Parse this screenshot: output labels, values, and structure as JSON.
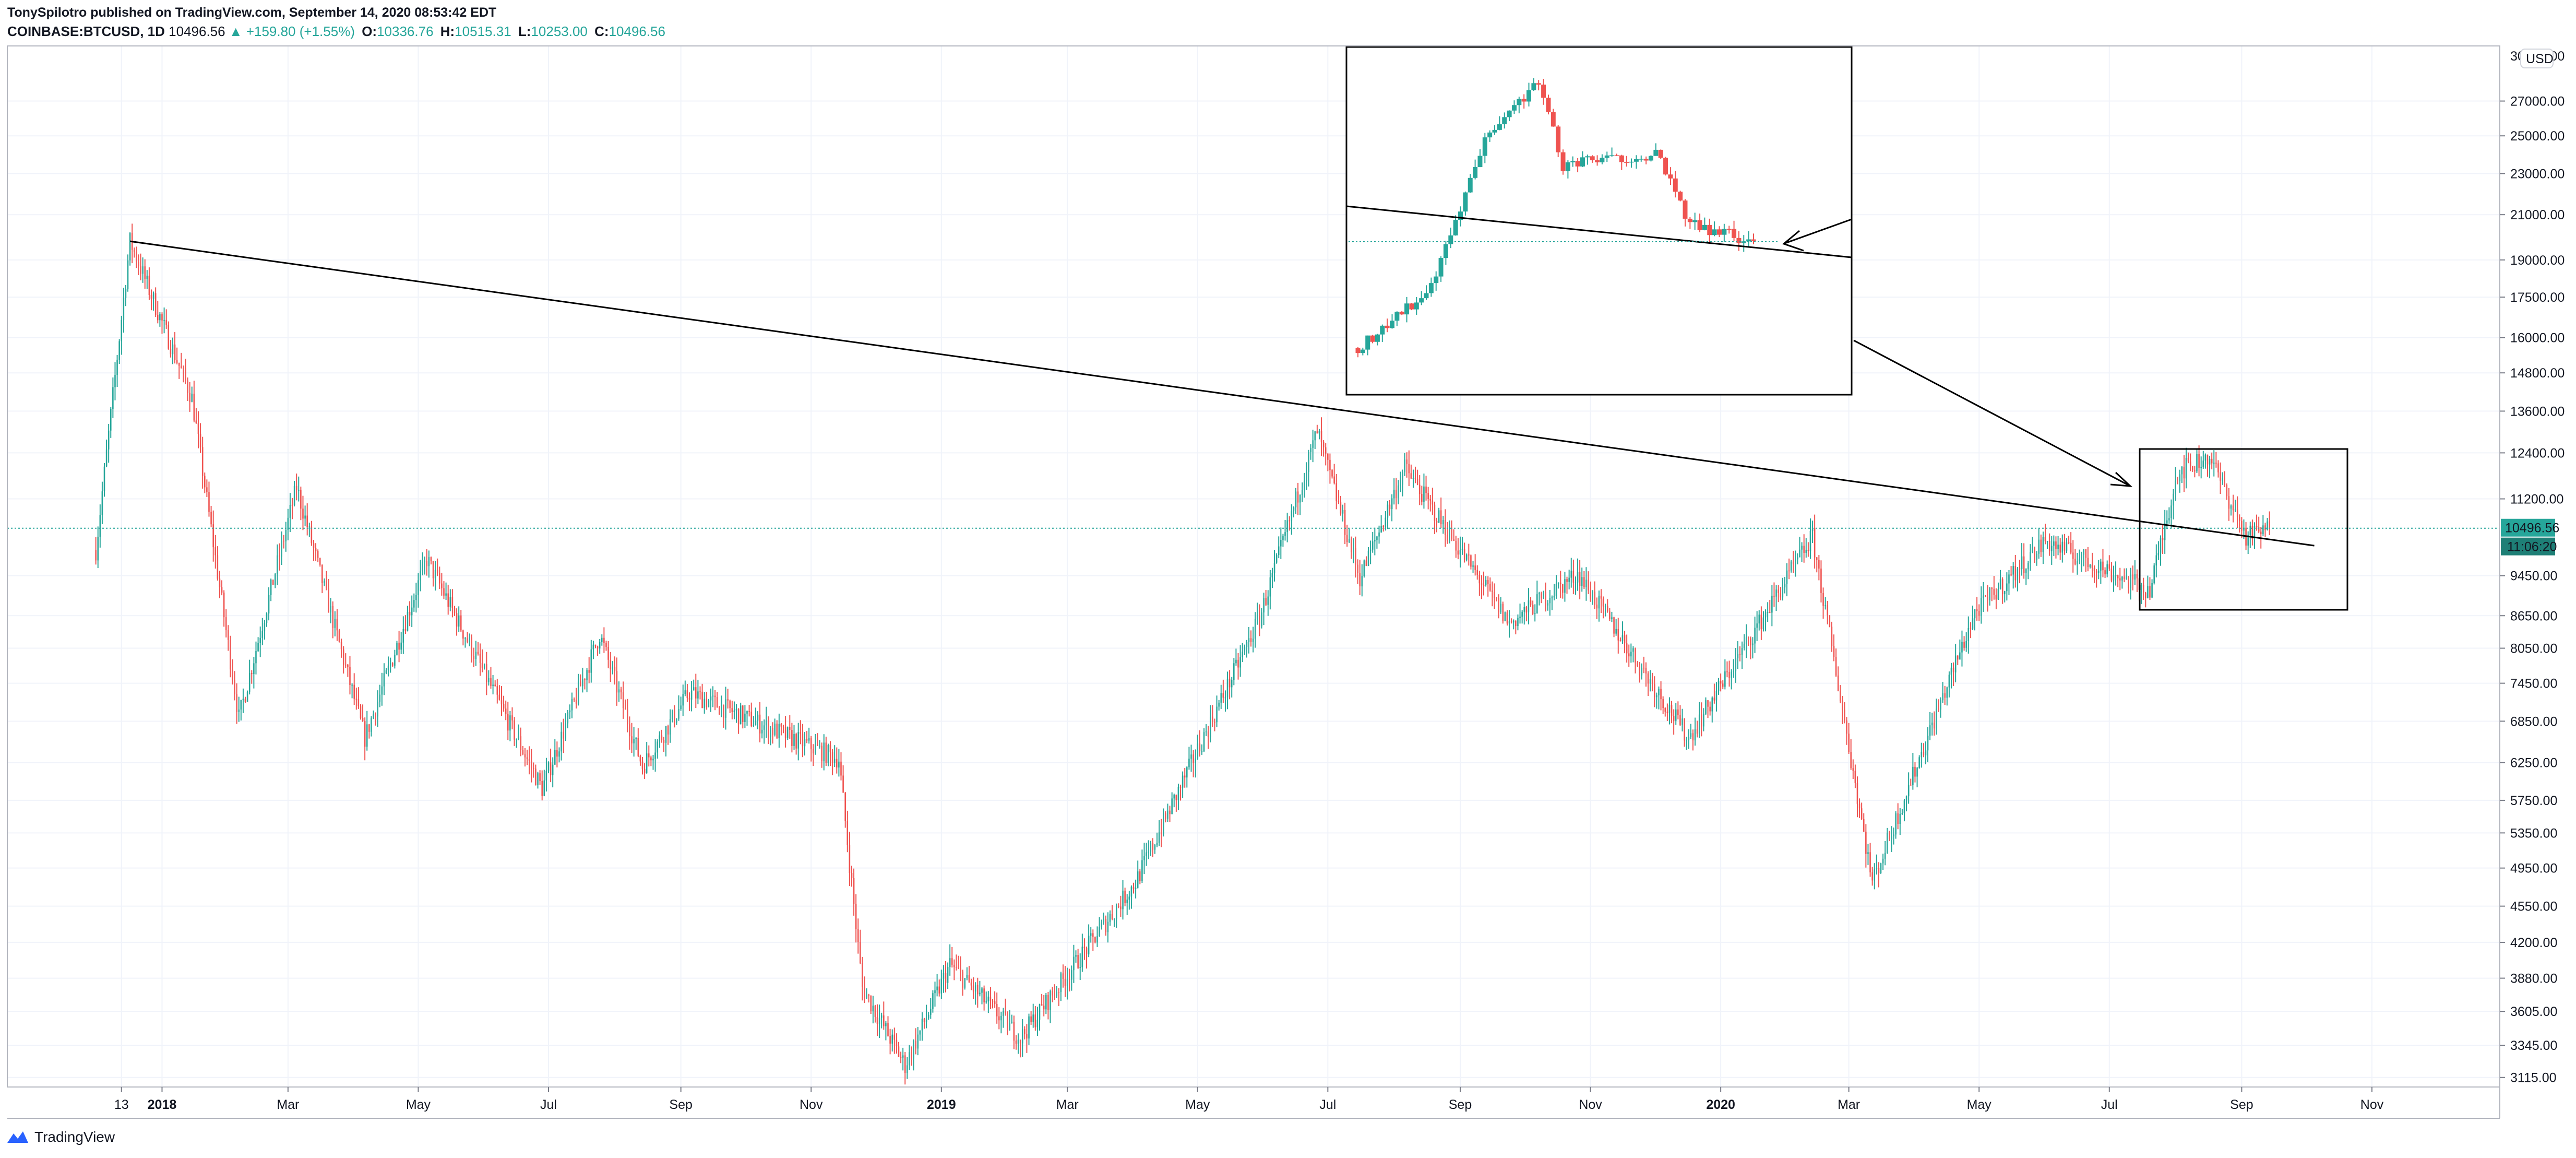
{
  "header": {
    "publisher_line": "TonySpilotro published on TradingView.com, September 14, 2020 08:53:42 EDT",
    "symbol": "COINBASE:BTCUSD, 1D",
    "last": "10496.56",
    "change_arrow": "▲",
    "change": "+159.80 (+1.55%)",
    "open_label": "O:",
    "open": "10336.76",
    "high_label": "H:",
    "high": "10515.31",
    "low_label": "L:",
    "low": "10253.00",
    "close_label": "C:",
    "close": "10496.56"
  },
  "price_axis": {
    "currency": "USD",
    "top_partial": "30000.00",
    "ticks": [
      "27000.00",
      "25000.00",
      "23000.00",
      "21000.00",
      "19000.00",
      "17500.00",
      "16000.00",
      "14800.00",
      "13600.00",
      "12400.00",
      "11200.00",
      "9450.00",
      "8650.00",
      "8050.00",
      "7450.00",
      "6850.00",
      "6250.00",
      "5750.00",
      "5350.00",
      "4950.00",
      "4550.00",
      "4200.00",
      "3880.00",
      "3605.00",
      "3345.00",
      "3115.00"
    ],
    "last_price_tag": "10496.56",
    "countdown_tag": "11:06:20"
  },
  "time_axis": {
    "labels": [
      {
        "text": "13",
        "bold": false
      },
      {
        "text": "2018",
        "bold": true
      },
      {
        "text": "Mar",
        "bold": false
      },
      {
        "text": "May",
        "bold": false
      },
      {
        "text": "Jul",
        "bold": false
      },
      {
        "text": "Sep",
        "bold": false
      },
      {
        "text": "Nov",
        "bold": false
      },
      {
        "text": "2019",
        "bold": true
      },
      {
        "text": "Mar",
        "bold": false
      },
      {
        "text": "May",
        "bold": false
      },
      {
        "text": "Jul",
        "bold": false
      },
      {
        "text": "Sep",
        "bold": false
      },
      {
        "text": "Nov",
        "bold": false
      },
      {
        "text": "2020",
        "bold": true
      },
      {
        "text": "Mar",
        "bold": false
      },
      {
        "text": "May",
        "bold": false
      },
      {
        "text": "Jul",
        "bold": false
      },
      {
        "text": "Sep",
        "bold": false
      },
      {
        "text": "Nov",
        "bold": false
      }
    ]
  },
  "colors": {
    "up": "#26a69a",
    "down": "#ef5350",
    "grid": "#f0f3fa",
    "text": "#131722",
    "drawing": "#000000",
    "last_price_line": "#26a69a"
  },
  "chart_data": {
    "type": "candlestick",
    "symbol": "COINBASE:BTCUSD",
    "interval": "1D",
    "y_scale": "log",
    "ylim": [
      3050,
      30500
    ],
    "key_points": [
      {
        "date": "2017-12-01",
        "close": 10000
      },
      {
        "date": "2017-12-17",
        "close": 19800
      },
      {
        "date": "2018-01-15",
        "close": 14000
      },
      {
        "date": "2018-02-06",
        "close": 6900
      },
      {
        "date": "2018-03-05",
        "close": 11500
      },
      {
        "date": "2018-04-06",
        "close": 6600
      },
      {
        "date": "2018-05-05",
        "close": 9800
      },
      {
        "date": "2018-06-28",
        "close": 5900
      },
      {
        "date": "2018-07-25",
        "close": 8300
      },
      {
        "date": "2018-08-14",
        "close": 6200
      },
      {
        "date": "2018-09-05",
        "close": 7300
      },
      {
        "date": "2018-11-14",
        "close": 6300
      },
      {
        "date": "2018-11-25",
        "close": 3800
      },
      {
        "date": "2018-12-15",
        "close": 3200
      },
      {
        "date": "2019-01-05",
        "close": 4000
      },
      {
        "date": "2019-02-07",
        "close": 3400
      },
      {
        "date": "2019-04-02",
        "close": 4800
      },
      {
        "date": "2019-05-30",
        "close": 8600
      },
      {
        "date": "2019-06-26",
        "close": 13000
      },
      {
        "date": "2019-07-16",
        "close": 9400
      },
      {
        "date": "2019-08-06",
        "close": 12000
      },
      {
        "date": "2019-09-24",
        "close": 8500
      },
      {
        "date": "2019-10-26",
        "close": 9500
      },
      {
        "date": "2019-12-17",
        "close": 6600
      },
      {
        "date": "2020-02-13",
        "close": 10300
      },
      {
        "date": "2020-03-12",
        "close": 4800
      },
      {
        "date": "2020-04-29",
        "close": 8700
      },
      {
        "date": "2020-06-01",
        "close": 10200
      },
      {
        "date": "2020-07-20",
        "close": 9150
      },
      {
        "date": "2020-08-02",
        "close": 11900
      },
      {
        "date": "2020-08-17",
        "close": 12300
      },
      {
        "date": "2020-09-03",
        "close": 10300
      },
      {
        "date": "2020-09-14",
        "close": 10496.56
      }
    ],
    "annotations": {
      "trendline": [
        {
          "date": "2017-12-17",
          "price": 19800
        },
        {
          "date": "2020-10-05",
          "price": 10100
        }
      ],
      "last_price": 10496.56
    },
    "inset": {
      "key_points": [
        {
          "date": "2017-11-10",
          "close": 6500
        },
        {
          "date": "2017-11-25",
          "close": 8300
        },
        {
          "date": "2017-12-07",
          "close": 16000
        },
        {
          "date": "2017-12-17",
          "close": 19500
        },
        {
          "date": "2017-12-22",
          "close": 13800
        },
        {
          "date": "2018-01-10",
          "close": 14500
        },
        {
          "date": "2018-01-17",
          "close": 10800
        },
        {
          "date": "2018-01-30",
          "close": 10100
        }
      ]
    }
  }
}
